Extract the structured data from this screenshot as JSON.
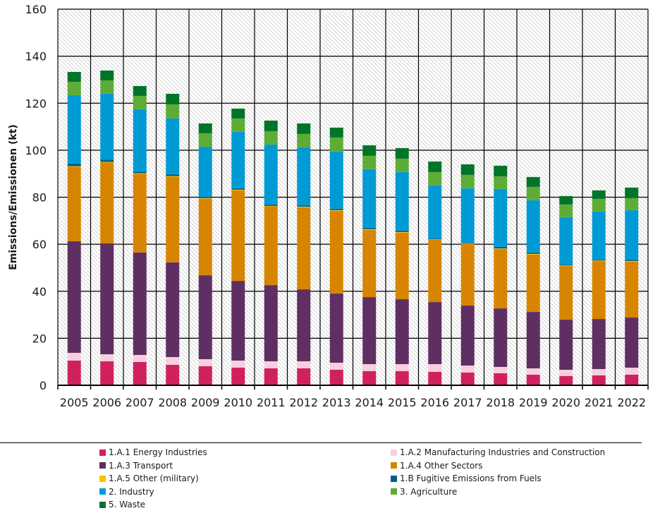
{
  "chart_data": {
    "type": "bar",
    "stacked": true,
    "title": "",
    "xlabel": "",
    "ylabel": "Emissions/Emissionen (kt)",
    "ylim": [
      0,
      160
    ],
    "yticks": [
      0,
      20,
      40,
      60,
      80,
      100,
      120,
      140,
      160
    ],
    "grid": true,
    "background_pattern": "diagonal-hatch",
    "legend_position": "bottom",
    "categories": [
      "2005",
      "2006",
      "2007",
      "2008",
      "2009",
      "2010",
      "2011",
      "2012",
      "2013",
      "2014",
      "2015",
      "2016",
      "2017",
      "2018",
      "2019",
      "2020",
      "2021",
      "2022"
    ],
    "series": [
      {
        "name": "1.A.1 Energy Industries",
        "color": "#d0215e",
        "values": [
          10.5,
          10.2,
          9.9,
          8.7,
          8.1,
          7.5,
          7.2,
          7.2,
          6.6,
          6.0,
          6.0,
          5.7,
          5.4,
          5.1,
          4.5,
          3.9,
          4.2,
          4.5
        ]
      },
      {
        "name": "1.A.2 Manufacturing Industries and Construction",
        "color": "#f7cfe0",
        "values": [
          3.3,
          3.0,
          3.0,
          3.3,
          3.0,
          3.0,
          3.0,
          3.0,
          3.0,
          3.0,
          3.0,
          3.3,
          3.0,
          2.7,
          2.7,
          2.7,
          2.7,
          3.0
        ]
      },
      {
        "name": "1.A.3 Transport",
        "color": "#5f2f63",
        "values": [
          47.5,
          47.2,
          43.6,
          40.3,
          35.7,
          33.9,
          32.4,
          30.6,
          29.4,
          28.5,
          27.6,
          26.4,
          25.5,
          24.9,
          24.0,
          21.3,
          21.3,
          21.3
        ]
      },
      {
        "name": "1.A.4 Other Sectors",
        "color": "#d78500",
        "values": [
          31.6,
          34.3,
          33.4,
          36.4,
          32.5,
          38.5,
          33.5,
          34.9,
          35.2,
          28.6,
          28.3,
          26.5,
          26.2,
          25.3,
          24.4,
          22.9,
          24.7,
          23.8
        ]
      },
      {
        "name": "1.A.5 Other (military)",
        "color": "#fbbf00",
        "values": [
          0.3,
          0.3,
          0.3,
          0.3,
          0.3,
          0.3,
          0.2,
          0.3,
          0.3,
          0.3,
          0.3,
          0.2,
          0.3,
          0.2,
          0.3,
          0.2,
          0.2,
          0.3
        ]
      },
      {
        "name": "1.B Fugitive Emissions from Fuels",
        "color": "#005f85",
        "values": [
          1.1,
          0.9,
          0.7,
          0.8,
          0.6,
          0.6,
          0.6,
          0.6,
          0.6,
          0.6,
          0.6,
          0.4,
          0.3,
          0.7,
          0.6,
          0.4,
          0.4,
          0.6
        ]
      },
      {
        "name": "2. Industry",
        "color": "#009bd5",
        "values": [
          29.1,
          28.1,
          26.5,
          23.7,
          21.3,
          24.0,
          25.5,
          24.6,
          24.3,
          24.9,
          24.9,
          22.5,
          23.1,
          24.6,
          22.2,
          20.1,
          20.4,
          21.0
        ]
      },
      {
        "name": "3. Agriculture",
        "color": "#5eac38",
        "values": [
          5.7,
          5.7,
          5.7,
          6.0,
          5.7,
          5.7,
          5.7,
          5.7,
          6.0,
          5.7,
          5.7,
          5.7,
          5.7,
          5.4,
          5.7,
          5.4,
          5.4,
          5.1
        ]
      },
      {
        "name": "5. Waste",
        "color": "#007428",
        "values": [
          4.2,
          4.2,
          4.2,
          4.5,
          4.2,
          4.2,
          4.5,
          4.5,
          4.2,
          4.5,
          4.5,
          4.5,
          4.5,
          4.5,
          4.2,
          3.6,
          3.6,
          4.5
        ]
      }
    ]
  },
  "legend": {
    "items": [
      {
        "label": "1.A.1 Energy Industries",
        "color": "#d0215e"
      },
      {
        "label": "1.A.2 Manufacturing Industries and Construction",
        "color": "#f7cfe0"
      },
      {
        "label": "1.A.3 Transport",
        "color": "#5f2f63"
      },
      {
        "label": "1.A.4 Other Sectors",
        "color": "#d78500"
      },
      {
        "label": "1.A.5 Other (military)",
        "color": "#fbbf00"
      },
      {
        "label": "1.B Fugitive Emissions from Fuels",
        "color": "#005f85"
      },
      {
        "label": "2. Industry",
        "color": "#009bd5"
      },
      {
        "label": "3. Agriculture",
        "color": "#5eac38"
      },
      {
        "label": "5. Waste",
        "color": "#007428"
      }
    ]
  }
}
